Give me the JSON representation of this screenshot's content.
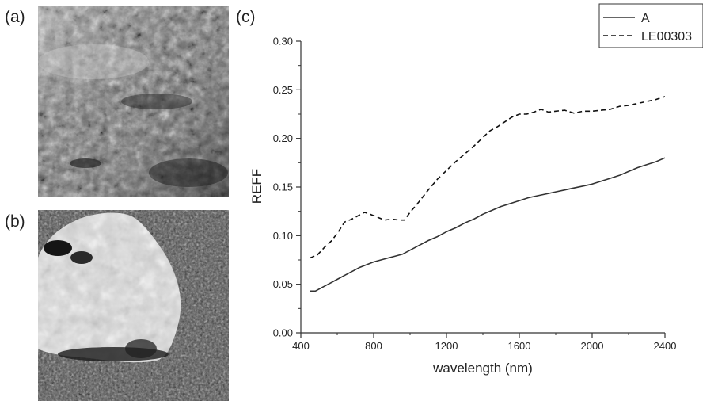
{
  "panels": {
    "a": "(a)",
    "b": "(b)",
    "c": "(c)"
  },
  "images": {
    "a": {
      "description": "grayscale close-up photo of layered rock surface"
    },
    "b": {
      "description": "grayscale close-up photo of a bright rock on darker soil"
    }
  },
  "chart_data": {
    "type": "line",
    "xlabel": "wavelength (nm)",
    "ylabel": "REFF",
    "xlim": [
      400,
      2400
    ],
    "ylim": [
      0.0,
      0.3
    ],
    "xticks": [
      400,
      800,
      1200,
      1600,
      2000,
      2400
    ],
    "xtick_labels": [
      "400",
      "800",
      "1200",
      "1600",
      "2000",
      "2400"
    ],
    "yticks": [
      0.0,
      0.05,
      0.1,
      0.15,
      0.2,
      0.25,
      0.3
    ],
    "ytick_labels": [
      "0.00",
      "0.05",
      "0.10",
      "0.15",
      "0.20",
      "0.25",
      "0.30"
    ],
    "legend_position": "top-right",
    "series": [
      {
        "name": "A",
        "style": "solid",
        "color": "#333333",
        "x": [
          450,
          480,
          520,
          560,
          600,
          640,
          680,
          720,
          760,
          800,
          840,
          880,
          920,
          960,
          1000,
          1050,
          1100,
          1150,
          1200,
          1250,
          1300,
          1350,
          1400,
          1450,
          1500,
          1550,
          1600,
          1650,
          1700,
          1750,
          1800,
          1850,
          1900,
          1950,
          2000,
          2050,
          2100,
          2150,
          2200,
          2250,
          2300,
          2350,
          2400
        ],
        "y": [
          0.043,
          0.043,
          0.047,
          0.051,
          0.055,
          0.059,
          0.063,
          0.067,
          0.07,
          0.073,
          0.075,
          0.077,
          0.079,
          0.081,
          0.085,
          0.09,
          0.095,
          0.099,
          0.104,
          0.108,
          0.113,
          0.117,
          0.122,
          0.126,
          0.13,
          0.133,
          0.136,
          0.139,
          0.141,
          0.143,
          0.145,
          0.147,
          0.149,
          0.151,
          0.153,
          0.156,
          0.159,
          0.162,
          0.166,
          0.17,
          0.173,
          0.176,
          0.18
        ]
      },
      {
        "name": "LE00303",
        "style": "dashed",
        "color": "#111111",
        "x": [
          450,
          490,
          530,
          570,
          610,
          640,
          680,
          720,
          750,
          780,
          820,
          860,
          900,
          940,
          970,
          1000,
          1050,
          1100,
          1150,
          1200,
          1250,
          1300,
          1350,
          1400,
          1440,
          1480,
          1520,
          1560,
          1600,
          1640,
          1680,
          1720,
          1760,
          1800,
          1850,
          1900,
          1950,
          2000,
          2050,
          2100,
          2150,
          2200,
          2250,
          2300,
          2350,
          2400
        ],
        "y": [
          0.077,
          0.08,
          0.088,
          0.095,
          0.105,
          0.114,
          0.117,
          0.121,
          0.124,
          0.122,
          0.119,
          0.116,
          0.117,
          0.116,
          0.116,
          0.124,
          0.135,
          0.147,
          0.158,
          0.167,
          0.176,
          0.184,
          0.192,
          0.201,
          0.208,
          0.212,
          0.217,
          0.222,
          0.225,
          0.225,
          0.227,
          0.23,
          0.227,
          0.228,
          0.229,
          0.226,
          0.228,
          0.228,
          0.229,
          0.23,
          0.233,
          0.234,
          0.236,
          0.238,
          0.24,
          0.243
        ]
      }
    ]
  }
}
